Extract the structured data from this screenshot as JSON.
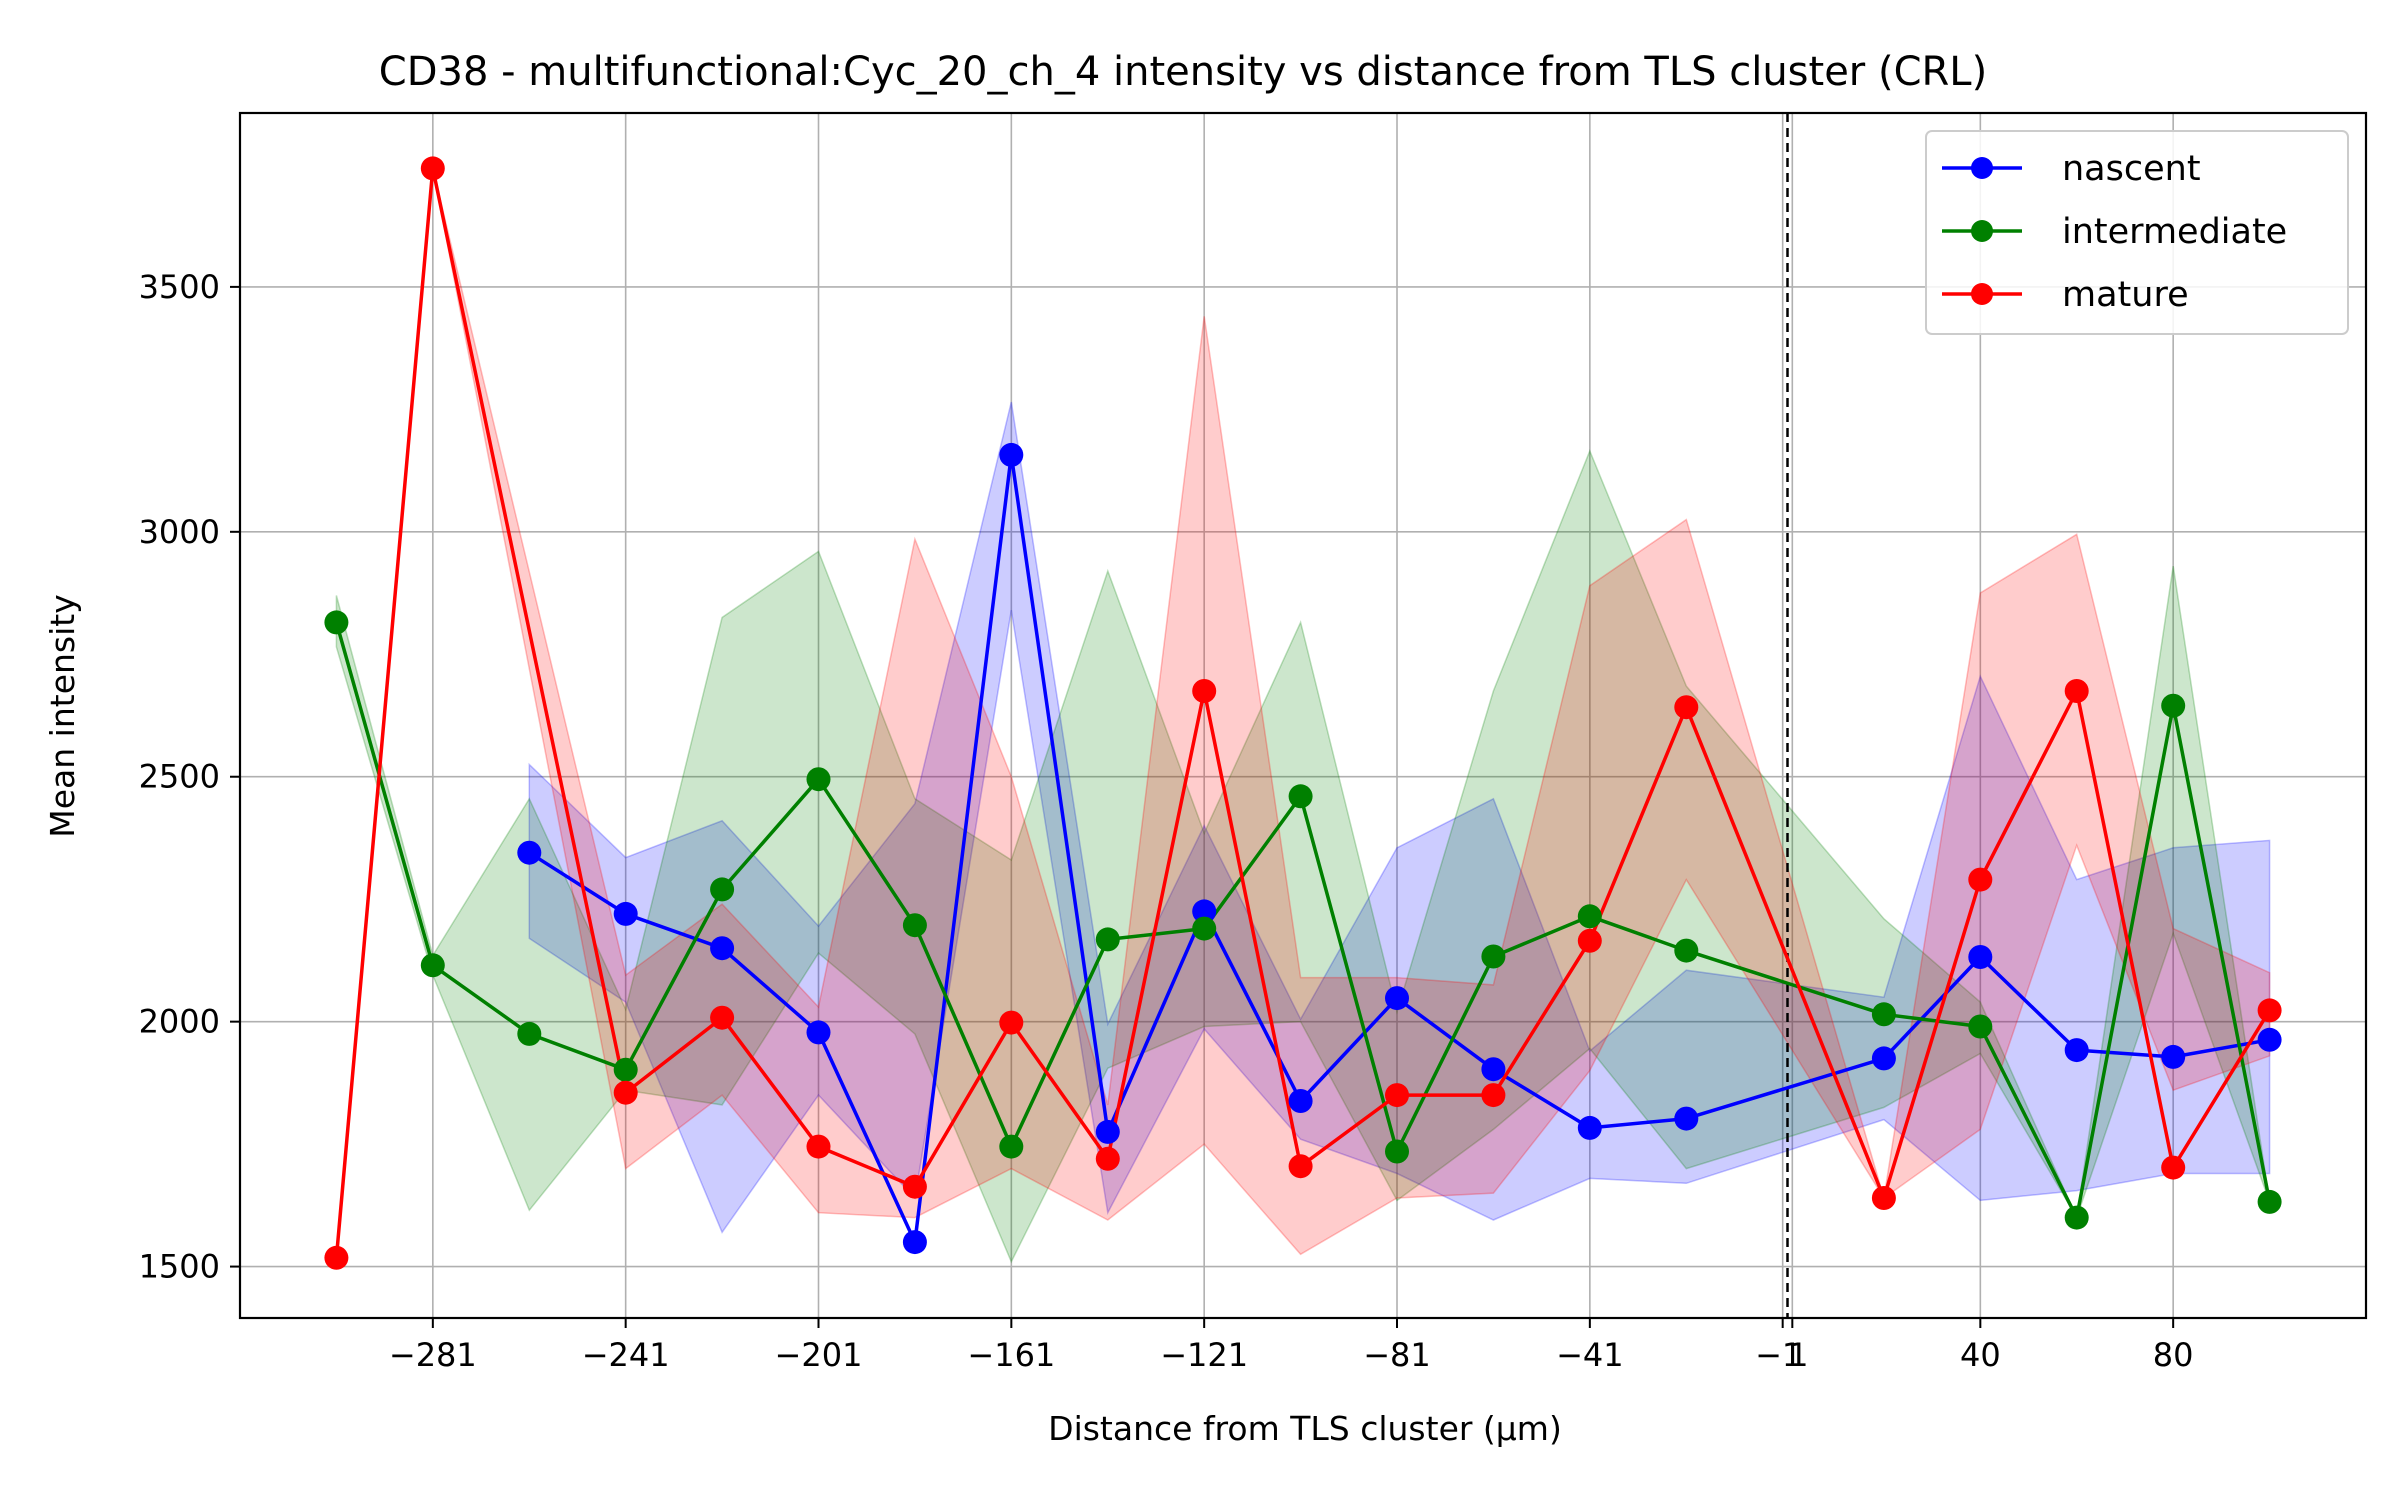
{
  "chart_data": {
    "type": "line",
    "title": "CD38 - multifunctional:Cyc_20_ch_4 intensity vs distance from TLS cluster (CRL)",
    "xlabel": "Distance from TLS cluster (μm)",
    "ylabel": "Mean intensity",
    "xlim": [
      -321,
      120
    ],
    "ylim": [
      1395,
      3855
    ],
    "xticks": [
      -281,
      -241,
      -201,
      -161,
      -121,
      -81,
      -41,
      -1,
      1,
      40,
      80
    ],
    "xtick_labels": [
      "−281",
      "−241",
      "−201",
      "−161",
      "−121",
      "−81",
      "−41",
      "−1",
      "1",
      "40",
      "80"
    ],
    "yticks": [
      1500,
      2000,
      2500,
      3000,
      3500
    ],
    "ytick_labels": [
      "1500",
      "2000",
      "2500",
      "3000",
      "3500"
    ],
    "grid": true,
    "legend_position": "top-right",
    "reference_line_x": 0,
    "series": [
      {
        "name": "nascent",
        "color": "#0000ff",
        "points": [
          [
            -261,
            2345
          ],
          [
            -241,
            2220
          ],
          [
            -221,
            2150
          ],
          [
            -201,
            1978
          ],
          [
            -181,
            1550
          ],
          [
            -161,
            3157
          ],
          [
            -141,
            1775
          ],
          [
            -121,
            2225
          ],
          [
            -101,
            1838
          ],
          [
            -81,
            2048
          ],
          [
            -61,
            1903
          ],
          [
            -41,
            1783
          ],
          [
            -21,
            1802
          ],
          [
            20,
            1925
          ],
          [
            40,
            2132
          ],
          [
            60,
            1942
          ],
          [
            80,
            1928
          ],
          [
            100,
            1963
          ]
        ],
        "band": [
          [
            -261,
            2170,
            2525
          ],
          [
            -241,
            2040,
            2335
          ],
          [
            -221,
            1570,
            2410
          ],
          [
            -201,
            1850,
            2195
          ],
          [
            -181,
            1640,
            2445
          ],
          [
            -161,
            2840,
            3265
          ],
          [
            -141,
            1610,
            1995
          ],
          [
            -121,
            1985,
            2400
          ],
          [
            -101,
            1760,
            2005
          ],
          [
            -81,
            1690,
            2355
          ],
          [
            -61,
            1595,
            2455
          ],
          [
            -41,
            1680,
            1940
          ],
          [
            -21,
            1670,
            2105
          ],
          [
            20,
            1800,
            2050
          ],
          [
            40,
            1635,
            2705
          ],
          [
            60,
            1655,
            2290
          ],
          [
            80,
            1690,
            2355
          ],
          [
            100,
            1690,
            2370
          ]
        ]
      },
      {
        "name": "intermediate",
        "color": "#008000",
        "points": [
          [
            -301,
            2815
          ],
          [
            -281,
            2115
          ],
          [
            -261,
            1975
          ],
          [
            -241,
            1902
          ],
          [
            -221,
            2270
          ],
          [
            -201,
            2495
          ],
          [
            -181,
            2197
          ],
          [
            -161,
            1745
          ],
          [
            -141,
            2168
          ],
          [
            -121,
            2190
          ],
          [
            -101,
            2460
          ],
          [
            -81,
            1735
          ],
          [
            -61,
            2133
          ],
          [
            -41,
            2215
          ],
          [
            -21,
            2145
          ],
          [
            20,
            2015
          ],
          [
            40,
            1990
          ],
          [
            60,
            1600
          ],
          [
            80,
            2645
          ],
          [
            100,
            1632
          ]
        ],
        "band": [
          [
            -301,
            2765,
            2870
          ],
          [
            -281,
            2095,
            2135
          ],
          [
            -261,
            1615,
            2455
          ],
          [
            -241,
            1860,
            2025
          ],
          [
            -221,
            1830,
            2825
          ],
          [
            -201,
            2140,
            2960
          ],
          [
            -181,
            1975,
            2455
          ],
          [
            -161,
            1510,
            2330
          ],
          [
            -141,
            1905,
            2920
          ],
          [
            -121,
            1990,
            2385
          ],
          [
            -101,
            2000,
            2815
          ],
          [
            -81,
            1635,
            2020
          ],
          [
            -61,
            1780,
            2675
          ],
          [
            -41,
            1945,
            3165
          ],
          [
            -21,
            1700,
            2685
          ],
          [
            20,
            1825,
            2210
          ],
          [
            40,
            1935,
            2040
          ],
          [
            60,
            1600,
            1600
          ],
          [
            80,
            2180,
            2930
          ],
          [
            100,
            1632,
            1632
          ]
        ]
      },
      {
        "name": "mature",
        "color": "#ff0000",
        "points": [
          [
            -301,
            1518
          ],
          [
            -281,
            3742
          ],
          [
            -241,
            1855
          ],
          [
            -221,
            2008
          ],
          [
            -201,
            1745
          ],
          [
            -181,
            1663
          ],
          [
            -161,
            1998
          ],
          [
            -141,
            1720
          ],
          [
            -121,
            2675
          ],
          [
            -101,
            1705
          ],
          [
            -81,
            1850
          ],
          [
            -61,
            1850
          ],
          [
            -41,
            2165
          ],
          [
            -21,
            2642
          ],
          [
            20,
            1640
          ],
          [
            40,
            2290
          ],
          [
            60,
            2675
          ],
          [
            80,
            1702
          ],
          [
            100,
            2023
          ]
        ],
        "band": [
          [
            -301,
            1518,
            1518
          ],
          [
            -281,
            3742,
            3742
          ],
          [
            -241,
            1700,
            2095
          ],
          [
            -221,
            1850,
            2240
          ],
          [
            -201,
            1610,
            2030
          ],
          [
            -181,
            1600,
            2985
          ],
          [
            -161,
            1700,
            2500
          ],
          [
            -141,
            1595,
            1830
          ],
          [
            -121,
            1750,
            3440
          ],
          [
            -101,
            1525,
            2090
          ],
          [
            -81,
            1640,
            2090
          ],
          [
            -61,
            1650,
            2075
          ],
          [
            -41,
            1900,
            2890
          ],
          [
            -21,
            2290,
            3025
          ],
          [
            20,
            1640,
            1640
          ],
          [
            40,
            1780,
            2875
          ],
          [
            60,
            2360,
            2995
          ],
          [
            80,
            1860,
            2190
          ],
          [
            100,
            1930,
            2100
          ]
        ]
      }
    ]
  }
}
